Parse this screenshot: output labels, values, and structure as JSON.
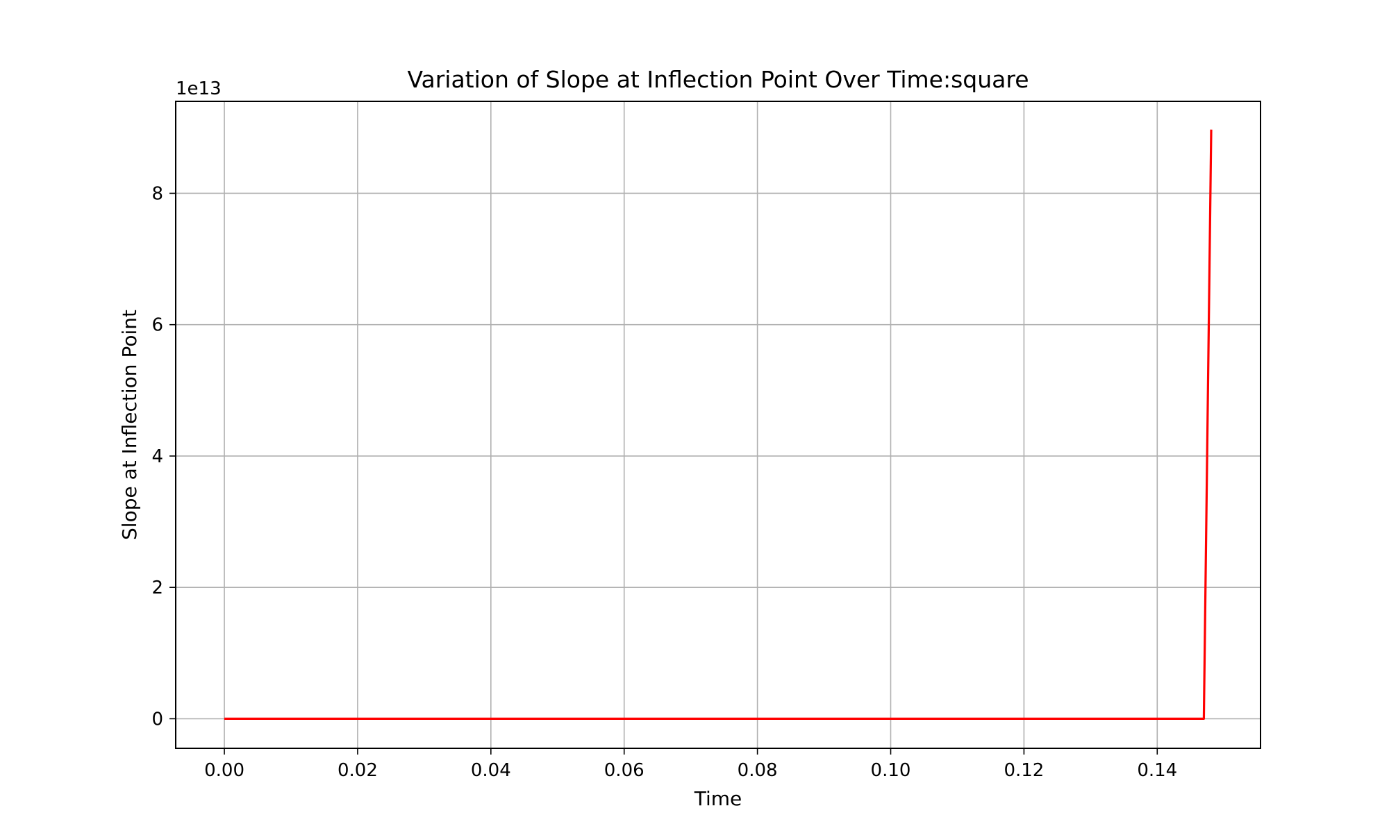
{
  "chart_data": {
    "type": "line",
    "title": "Variation of Slope at Inflection Point Over Time:square",
    "xlabel": "Time",
    "ylabel": "Slope at Inflection Point",
    "y_offset_label": "1e13",
    "xlim": [
      -0.0073,
      0.1555
    ],
    "ylim": [
      -0.45,
      9.4
    ],
    "x_ticks": [
      0.0,
      0.02,
      0.04,
      0.06,
      0.08,
      0.1,
      0.12,
      0.14
    ],
    "x_tick_labels": [
      "0.00",
      "0.02",
      "0.04",
      "0.06",
      "0.08",
      "0.10",
      "0.12",
      "0.14"
    ],
    "y_ticks": [
      0,
      2,
      4,
      6,
      8
    ],
    "y_tick_labels": [
      "0",
      "2",
      "4",
      "6",
      "8"
    ],
    "grid": true,
    "series": [
      {
        "color": "#ff0000",
        "x": [
          0.0,
          0.147,
          0.1481
        ],
        "y": [
          0.0,
          0.0,
          8.97
        ]
      }
    ]
  }
}
